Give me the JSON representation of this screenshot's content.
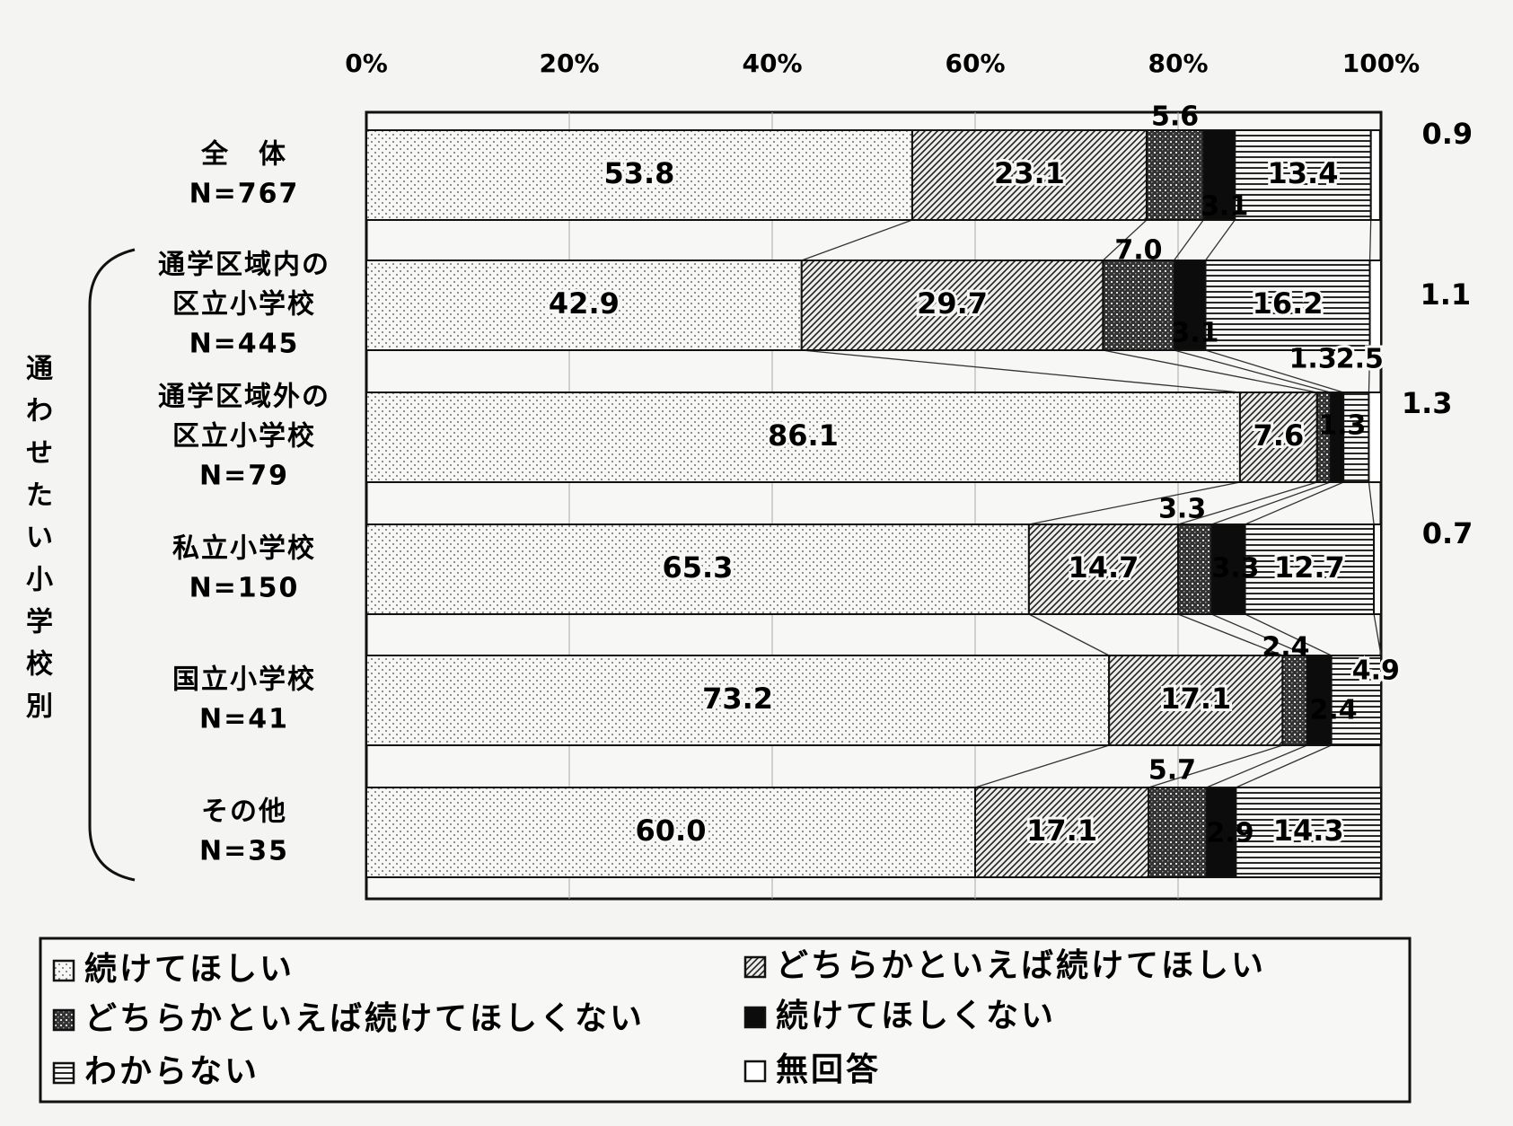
{
  "chart_data": {
    "type": "bar",
    "stacked": "100%",
    "orientation": "horizontal",
    "x_ticks": [
      "0%",
      "20%",
      "40%",
      "60%",
      "80%",
      "100%"
    ],
    "xlim": [
      0,
      100
    ],
    "group_label": "通わせたい小学校別",
    "categories": [
      {
        "name": "全　体",
        "n": "N=767"
      },
      {
        "name": "通学区域内の\n区立小学校",
        "n": "N=445"
      },
      {
        "name": "通学区域外の\n区立小学校",
        "n": "N=79"
      },
      {
        "name": "私立小学校",
        "n": "N=150"
      },
      {
        "name": "国立小学校",
        "n": "N=41"
      },
      {
        "name": "その他",
        "n": "N=35"
      }
    ],
    "series": [
      {
        "name": "続けてほしい",
        "values": [
          53.8,
          42.9,
          86.1,
          65.3,
          73.2,
          60.0
        ]
      },
      {
        "name": "どちらかといえば続けてほしい",
        "values": [
          23.1,
          29.7,
          7.6,
          14.7,
          17.1,
          17.1
        ]
      },
      {
        "name": "どちらかといえば続けてほしくない",
        "values": [
          5.6,
          7.0,
          1.3,
          3.3,
          2.4,
          5.7
        ]
      },
      {
        "name": "続けてほしくない",
        "values": [
          3.1,
          3.1,
          1.3,
          3.3,
          2.4,
          2.9
        ]
      },
      {
        "name": "わからない",
        "values": [
          13.4,
          16.2,
          2.5,
          12.7,
          4.9,
          14.3
        ]
      },
      {
        "name": "無回答",
        "values": [
          0.9,
          1.1,
          1.3,
          0.7,
          0.0,
          0.0
        ]
      }
    ],
    "value_labels": [
      [
        "53.8",
        "23.1",
        "5.6",
        "3.1",
        "13.4",
        "0.9"
      ],
      [
        "42.9",
        "29.7",
        "7.0",
        "3.1",
        "16.2",
        "1.1"
      ],
      [
        "86.1",
        "7.6",
        "1.3",
        "1.3",
        "2.5",
        "1.3"
      ],
      [
        "65.3",
        "14.7",
        "3.3",
        "3.3",
        "12.7",
        "0.7"
      ],
      [
        "73.2",
        "17.1",
        "2.4",
        "2.4",
        "4.9",
        ""
      ],
      [
        "60.0",
        "17.1",
        "5.7",
        "2.9",
        "14.3",
        ""
      ]
    ],
    "legend_position": "bottom",
    "grid": true
  }
}
